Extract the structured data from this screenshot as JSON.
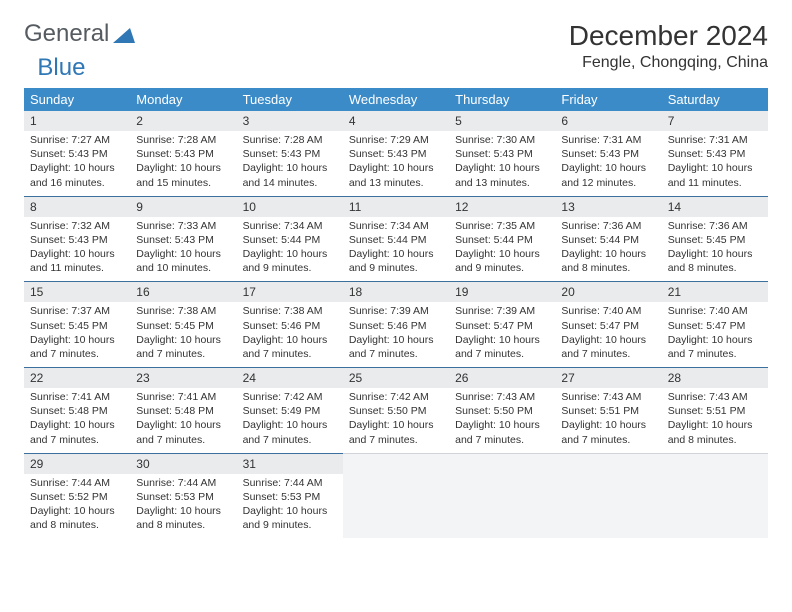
{
  "logo": {
    "general": "General",
    "blue": "Blue",
    "triangle_color": "#2f77b5"
  },
  "title": "December 2024",
  "location": "Fengle, Chongqing, China",
  "header_bg": "#3b8bc9",
  "header_fg": "#ffffff",
  "daynum_bg": "#e9ebec",
  "border_color": "#3b6f9e",
  "weekdays": [
    "Sunday",
    "Monday",
    "Tuesday",
    "Wednesday",
    "Thursday",
    "Friday",
    "Saturday"
  ],
  "weeks": [
    [
      {
        "n": "1",
        "sr": "Sunrise: 7:27 AM",
        "ss": "Sunset: 5:43 PM",
        "d1": "Daylight: 10 hours",
        "d2": "and 16 minutes."
      },
      {
        "n": "2",
        "sr": "Sunrise: 7:28 AM",
        "ss": "Sunset: 5:43 PM",
        "d1": "Daylight: 10 hours",
        "d2": "and 15 minutes."
      },
      {
        "n": "3",
        "sr": "Sunrise: 7:28 AM",
        "ss": "Sunset: 5:43 PM",
        "d1": "Daylight: 10 hours",
        "d2": "and 14 minutes."
      },
      {
        "n": "4",
        "sr": "Sunrise: 7:29 AM",
        "ss": "Sunset: 5:43 PM",
        "d1": "Daylight: 10 hours",
        "d2": "and 13 minutes."
      },
      {
        "n": "5",
        "sr": "Sunrise: 7:30 AM",
        "ss": "Sunset: 5:43 PM",
        "d1": "Daylight: 10 hours",
        "d2": "and 13 minutes."
      },
      {
        "n": "6",
        "sr": "Sunrise: 7:31 AM",
        "ss": "Sunset: 5:43 PM",
        "d1": "Daylight: 10 hours",
        "d2": "and 12 minutes."
      },
      {
        "n": "7",
        "sr": "Sunrise: 7:31 AM",
        "ss": "Sunset: 5:43 PM",
        "d1": "Daylight: 10 hours",
        "d2": "and 11 minutes."
      }
    ],
    [
      {
        "n": "8",
        "sr": "Sunrise: 7:32 AM",
        "ss": "Sunset: 5:43 PM",
        "d1": "Daylight: 10 hours",
        "d2": "and 11 minutes."
      },
      {
        "n": "9",
        "sr": "Sunrise: 7:33 AM",
        "ss": "Sunset: 5:43 PM",
        "d1": "Daylight: 10 hours",
        "d2": "and 10 minutes."
      },
      {
        "n": "10",
        "sr": "Sunrise: 7:34 AM",
        "ss": "Sunset: 5:44 PM",
        "d1": "Daylight: 10 hours",
        "d2": "and 9 minutes."
      },
      {
        "n": "11",
        "sr": "Sunrise: 7:34 AM",
        "ss": "Sunset: 5:44 PM",
        "d1": "Daylight: 10 hours",
        "d2": "and 9 minutes."
      },
      {
        "n": "12",
        "sr": "Sunrise: 7:35 AM",
        "ss": "Sunset: 5:44 PM",
        "d1": "Daylight: 10 hours",
        "d2": "and 9 minutes."
      },
      {
        "n": "13",
        "sr": "Sunrise: 7:36 AM",
        "ss": "Sunset: 5:44 PM",
        "d1": "Daylight: 10 hours",
        "d2": "and 8 minutes."
      },
      {
        "n": "14",
        "sr": "Sunrise: 7:36 AM",
        "ss": "Sunset: 5:45 PM",
        "d1": "Daylight: 10 hours",
        "d2": "and 8 minutes."
      }
    ],
    [
      {
        "n": "15",
        "sr": "Sunrise: 7:37 AM",
        "ss": "Sunset: 5:45 PM",
        "d1": "Daylight: 10 hours",
        "d2": "and 7 minutes."
      },
      {
        "n": "16",
        "sr": "Sunrise: 7:38 AM",
        "ss": "Sunset: 5:45 PM",
        "d1": "Daylight: 10 hours",
        "d2": "and 7 minutes."
      },
      {
        "n": "17",
        "sr": "Sunrise: 7:38 AM",
        "ss": "Sunset: 5:46 PM",
        "d1": "Daylight: 10 hours",
        "d2": "and 7 minutes."
      },
      {
        "n": "18",
        "sr": "Sunrise: 7:39 AM",
        "ss": "Sunset: 5:46 PM",
        "d1": "Daylight: 10 hours",
        "d2": "and 7 minutes."
      },
      {
        "n": "19",
        "sr": "Sunrise: 7:39 AM",
        "ss": "Sunset: 5:47 PM",
        "d1": "Daylight: 10 hours",
        "d2": "and 7 minutes."
      },
      {
        "n": "20",
        "sr": "Sunrise: 7:40 AM",
        "ss": "Sunset: 5:47 PM",
        "d1": "Daylight: 10 hours",
        "d2": "and 7 minutes."
      },
      {
        "n": "21",
        "sr": "Sunrise: 7:40 AM",
        "ss": "Sunset: 5:47 PM",
        "d1": "Daylight: 10 hours",
        "d2": "and 7 minutes."
      }
    ],
    [
      {
        "n": "22",
        "sr": "Sunrise: 7:41 AM",
        "ss": "Sunset: 5:48 PM",
        "d1": "Daylight: 10 hours",
        "d2": "and 7 minutes."
      },
      {
        "n": "23",
        "sr": "Sunrise: 7:41 AM",
        "ss": "Sunset: 5:48 PM",
        "d1": "Daylight: 10 hours",
        "d2": "and 7 minutes."
      },
      {
        "n": "24",
        "sr": "Sunrise: 7:42 AM",
        "ss": "Sunset: 5:49 PM",
        "d1": "Daylight: 10 hours",
        "d2": "and 7 minutes."
      },
      {
        "n": "25",
        "sr": "Sunrise: 7:42 AM",
        "ss": "Sunset: 5:50 PM",
        "d1": "Daylight: 10 hours",
        "d2": "and 7 minutes."
      },
      {
        "n": "26",
        "sr": "Sunrise: 7:43 AM",
        "ss": "Sunset: 5:50 PM",
        "d1": "Daylight: 10 hours",
        "d2": "and 7 minutes."
      },
      {
        "n": "27",
        "sr": "Sunrise: 7:43 AM",
        "ss": "Sunset: 5:51 PM",
        "d1": "Daylight: 10 hours",
        "d2": "and 7 minutes."
      },
      {
        "n": "28",
        "sr": "Sunrise: 7:43 AM",
        "ss": "Sunset: 5:51 PM",
        "d1": "Daylight: 10 hours",
        "d2": "and 8 minutes."
      }
    ],
    [
      {
        "n": "29",
        "sr": "Sunrise: 7:44 AM",
        "ss": "Sunset: 5:52 PM",
        "d1": "Daylight: 10 hours",
        "d2": "and 8 minutes."
      },
      {
        "n": "30",
        "sr": "Sunrise: 7:44 AM",
        "ss": "Sunset: 5:53 PM",
        "d1": "Daylight: 10 hours",
        "d2": "and 8 minutes."
      },
      {
        "n": "31",
        "sr": "Sunrise: 7:44 AM",
        "ss": "Sunset: 5:53 PM",
        "d1": "Daylight: 10 hours",
        "d2": "and 9 minutes."
      },
      null,
      null,
      null,
      null
    ]
  ]
}
